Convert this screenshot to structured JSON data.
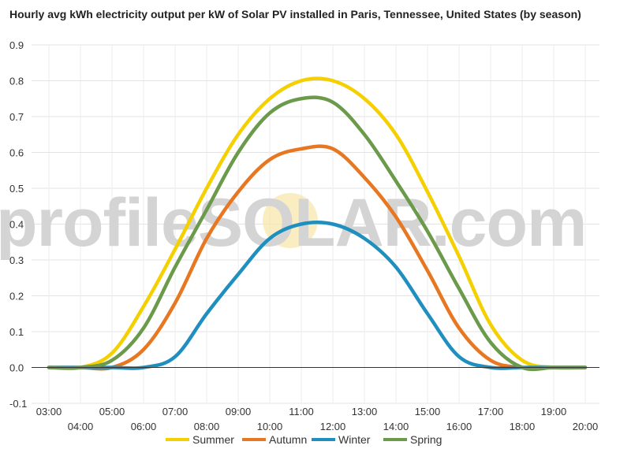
{
  "chart_data": {
    "type": "line",
    "title": "Hourly avg kWh electricity output per kW of Solar PV installed in Paris, Tennessee, United States (by season)",
    "xlabel": "",
    "ylabel": "",
    "watermark": "profileSOLAR.com",
    "x": [
      "03:00",
      "04:00",
      "05:00",
      "06:00",
      "07:00",
      "08:00",
      "09:00",
      "10:00",
      "11:00",
      "12:00",
      "13:00",
      "14:00",
      "15:00",
      "16:00",
      "17:00",
      "18:00",
      "19:00",
      "20:00"
    ],
    "ylim": [
      -0.1,
      0.9
    ],
    "yticks": [
      "-0.1",
      "0.0",
      "0.1",
      "0.2",
      "0.3",
      "0.4",
      "0.5",
      "0.6",
      "0.7",
      "0.8",
      "0.9"
    ],
    "grid": true,
    "legend_position": "bottom",
    "series": [
      {
        "name": "Summer",
        "color": "#f5d000",
        "values": [
          0.0,
          0.0,
          0.04,
          0.17,
          0.33,
          0.5,
          0.65,
          0.75,
          0.8,
          0.8,
          0.75,
          0.65,
          0.49,
          0.31,
          0.12,
          0.02,
          0.0,
          0.0
        ]
      },
      {
        "name": "Autumn",
        "color": "#e87722",
        "values": [
          0.0,
          0.0,
          0.0,
          0.05,
          0.18,
          0.36,
          0.49,
          0.58,
          0.61,
          0.61,
          0.53,
          0.42,
          0.27,
          0.11,
          0.02,
          0.0,
          0.0,
          0.0
        ]
      },
      {
        "name": "Winter",
        "color": "#1e8fbf",
        "values": [
          0.0,
          0.0,
          0.0,
          0.0,
          0.03,
          0.15,
          0.26,
          0.36,
          0.4,
          0.4,
          0.36,
          0.28,
          0.15,
          0.03,
          0.0,
          0.0,
          0.0,
          0.0
        ]
      },
      {
        "name": "Spring",
        "color": "#6b9a4b",
        "values": [
          0.0,
          0.0,
          0.02,
          0.11,
          0.28,
          0.44,
          0.6,
          0.71,
          0.75,
          0.74,
          0.65,
          0.52,
          0.38,
          0.22,
          0.07,
          0.0,
          0.0,
          0.0
        ]
      }
    ]
  }
}
